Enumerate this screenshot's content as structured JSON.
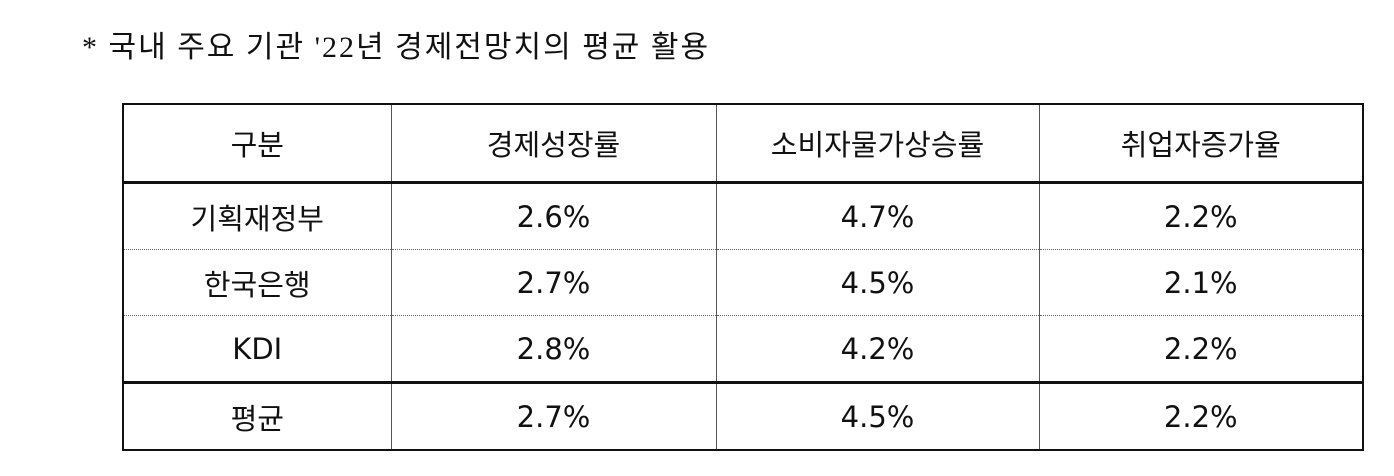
{
  "header": {
    "title": "* 국내 주요 기관 '22년 경제전망치의 평균 활용"
  },
  "table": {
    "columns": [
      "구분",
      "경제성장률",
      "소비자물가상승률",
      "취업자증가율"
    ],
    "rows": [
      [
        "기획재정부",
        "2.6%",
        "4.7%",
        "2.2%"
      ],
      [
        "한국은행",
        "2.7%",
        "4.5%",
        "2.1%"
      ],
      [
        "KDI",
        "2.8%",
        "4.2%",
        "2.2%"
      ],
      [
        "평균",
        "2.7%",
        "4.5%",
        "2.2%"
      ]
    ]
  }
}
